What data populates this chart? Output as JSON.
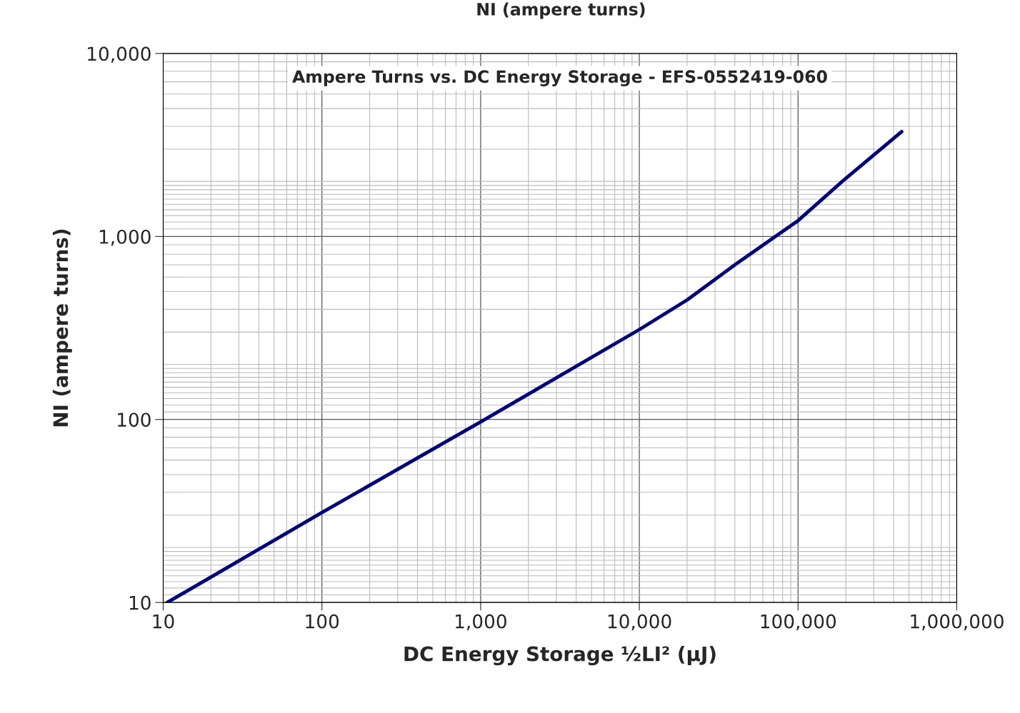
{
  "chart_data": {
    "type": "line",
    "title": "Ampere Turns vs. DC Energy Storage - EFS-0552419-060",
    "xlabel": "DC Energy Storage ½LI² (µJ)",
    "ylabel": "NI (ampere turns)",
    "annotations": [
      "NI (ampere turns)"
    ],
    "series": [
      {
        "color": "#000080",
        "x": [
          10.6,
          100,
          1000,
          10000,
          20000,
          40000,
          72000,
          100000,
          190000,
          450000
        ],
        "values": [
          10,
          31,
          97,
          310,
          450,
          700,
          1000,
          1220,
          2000,
          3740
        ]
      }
    ],
    "log": "xy",
    "grid": true,
    "marker": "none",
    "line_style": "solid",
    "xlim": [
      10,
      1000000
    ],
    "ylim": [
      10,
      10000
    ],
    "xticks": [
      10,
      100,
      {
        "value": 1000,
        "label": "1,000"
      },
      {
        "value": 10000,
        "label": "10,000"
      },
      {
        "value": 100000,
        "label": "100,000"
      },
      {
        "value": 1000000,
        "label": "1,000,000"
      }
    ],
    "yticks": [
      10,
      100,
      {
        "value": 1000,
        "label": "1,000"
      },
      {
        "value": 10000,
        "label": "10,000"
      }
    ]
  }
}
